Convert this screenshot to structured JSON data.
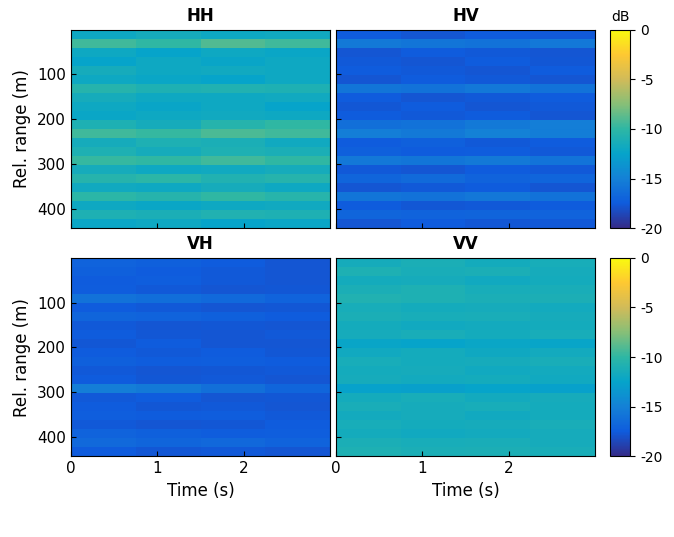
{
  "chart_data": [
    {
      "type": "heatmap",
      "title": "HH",
      "ylabel": "Rel. range (m)",
      "xlim": [
        0,
        3.0
      ],
      "ylim": [
        443,
        0
      ],
      "xticks": [
        0,
        1,
        2
      ],
      "yticks": [
        100,
        200,
        300,
        400
      ],
      "tick_labels": "y",
      "cells": [
        [
          -12,
          -11.5,
          -12,
          -11.8
        ],
        [
          -9.5,
          -10,
          -9,
          -9.5
        ],
        [
          -12,
          -12.5,
          -12,
          -12.2
        ],
        [
          -12.5,
          -12,
          -12.3,
          -12
        ],
        [
          -11.5,
          -12,
          -11.8,
          -12
        ],
        [
          -12,
          -12.2,
          -12.5,
          -12
        ],
        [
          -10.5,
          -11,
          -10.8,
          -11
        ],
        [
          -11.5,
          -12,
          -12,
          -11.8
        ],
        [
          -12,
          -12.3,
          -12,
          -12.5
        ],
        [
          -12.2,
          -12,
          -11.8,
          -12
        ],
        [
          -11,
          -11.5,
          -10.5,
          -10
        ],
        [
          -9.5,
          -9.8,
          -9.2,
          -9.5
        ],
        [
          -11.5,
          -11,
          -11.2,
          -11.8
        ],
        [
          -11,
          -11.5,
          -11,
          -11.2
        ],
        [
          -9.8,
          -10,
          -9.5,
          -10
        ],
        [
          -11.5,
          -12,
          -11.8,
          -11.5
        ],
        [
          -10.5,
          -10.2,
          -10.8,
          -10.5
        ],
        [
          -11.8,
          -12,
          -11.5,
          -12
        ],
        [
          -10.2,
          -10.5,
          -10,
          -10.4
        ],
        [
          -12,
          -12.2,
          -12,
          -11.8
        ],
        [
          -11,
          -11.2,
          -10.8,
          -11
        ],
        [
          -12.2,
          -12,
          -12.5,
          -12.2
        ]
      ]
    },
    {
      "type": "heatmap",
      "title": "HV",
      "xlim": [
        0,
        3.0
      ],
      "ylim": [
        443,
        0
      ],
      "xticks": [
        0,
        1,
        2
      ],
      "yticks": [
        100,
        200,
        300,
        400
      ],
      "tick_labels": false,
      "colorbar": {
        "range": [
          -20,
          0
        ],
        "ticks": [
          0,
          -5,
          -10,
          -15,
          -20
        ],
        "label": "dB"
      },
      "cells": [
        [
          -17.5,
          -17.8,
          -17.5,
          -17.6
        ],
        [
          -15.5,
          -15.8,
          -16,
          -15.6
        ],
        [
          -17.8,
          -17.5,
          -17.6,
          -17.8
        ],
        [
          -17.6,
          -17.8,
          -17.5,
          -17.7
        ],
        [
          -17.5,
          -17.6,
          -17.8,
          -17.5
        ],
        [
          -17.8,
          -17.5,
          -17.6,
          -17.8
        ],
        [
          -15.8,
          -16,
          -15.6,
          -16
        ],
        [
          -17.5,
          -17.8,
          -17.6,
          -17.5
        ],
        [
          -17.7,
          -17.5,
          -17.8,
          -17.6
        ],
        [
          -17.5,
          -17.6,
          -17.5,
          -17.8
        ],
        [
          -16.2,
          -16,
          -15.5,
          -15.2
        ],
        [
          -15.2,
          -15.5,
          -15,
          -15.3
        ],
        [
          -17.5,
          -17.2,
          -17.6,
          -17.5
        ],
        [
          -17.2,
          -17.5,
          -17.4,
          -17.6
        ],
        [
          -15.6,
          -15.8,
          -15.5,
          -15.9
        ],
        [
          -17.6,
          -17.8,
          -17.5,
          -17.6
        ],
        [
          -16.8,
          -16.5,
          -17,
          -16.8
        ],
        [
          -17.8,
          -17.6,
          -17.5,
          -17.8
        ],
        [
          -15.8,
          -16,
          -15.7,
          -16
        ],
        [
          -17.5,
          -17.7,
          -17.6,
          -17.5
        ],
        [
          -16.8,
          -17,
          -16.9,
          -17
        ],
        [
          -17.8,
          -17.5,
          -17.7,
          -17.6
        ]
      ]
    },
    {
      "type": "heatmap",
      "title": "VH",
      "xlabel": "Time (s)",
      "ylabel": "Rel. range (m)",
      "xlim": [
        0,
        3.0
      ],
      "ylim": [
        443,
        0
      ],
      "xticks": [
        0,
        1,
        2
      ],
      "yticks": [
        100,
        200,
        300,
        400
      ],
      "tick_labels": true,
      "cells": [
        [
          -17,
          -17.2,
          -17.5,
          -17.8
        ],
        [
          -17.2,
          -17.5,
          -17.6,
          -17.8
        ],
        [
          -17.5,
          -17.3,
          -17.6,
          -17.8
        ],
        [
          -17.4,
          -17.6,
          -17.8,
          -17.7
        ],
        [
          -16,
          -16.3,
          -16.6,
          -17
        ],
        [
          -17.5,
          -17.6,
          -17.8,
          -17.7
        ],
        [
          -16.8,
          -17,
          -17.2,
          -17.5
        ],
        [
          -17.6,
          -17.8,
          -17.7,
          -17.8
        ],
        [
          -17.5,
          -17.7,
          -17.8,
          -17.6
        ],
        [
          -17.7,
          -17.5,
          -17.8,
          -17.8
        ],
        [
          -17.5,
          -17.6,
          -17.5,
          -17.7
        ],
        [
          -17.2,
          -17.4,
          -17.3,
          -17.5
        ],
        [
          -17.6,
          -17.8,
          -17.7,
          -17.6
        ],
        [
          -17.5,
          -17.7,
          -17.6,
          -17.8
        ],
        [
          -15.2,
          -15.5,
          -16.2,
          -16.8
        ],
        [
          -17.6,
          -17.5,
          -17.8,
          -17.7
        ],
        [
          -17.5,
          -17.7,
          -17.6,
          -17.8
        ],
        [
          -17.3,
          -17.5,
          -17.4,
          -17.6
        ],
        [
          -17.6,
          -17.8,
          -17.7,
          -17.5
        ],
        [
          -17,
          -17.2,
          -17.4,
          -17.3
        ],
        [
          -16.6,
          -16.8,
          -16.7,
          -17
        ],
        [
          -17.5,
          -17.7,
          -17.6,
          -17.8
        ]
      ]
    },
    {
      "type": "heatmap",
      "title": "VV",
      "xlabel": "Time (s)",
      "xlim": [
        0,
        3.0
      ],
      "ylim": [
        443,
        0
      ],
      "xticks": [
        0,
        1,
        2
      ],
      "yticks": [
        100,
        200,
        300,
        400
      ],
      "tick_labels": "x",
      "colorbar": {
        "range": [
          -20,
          0
        ],
        "ticks": [
          0,
          -5,
          -10,
          -15,
          -20
        ]
      },
      "cells": [
        [
          -11.5,
          -11.2,
          -11.6,
          -11.4
        ],
        [
          -11,
          -11.3,
          -11.2,
          -11.5
        ],
        [
          -11.6,
          -11.5,
          -11.8,
          -11.6
        ],
        [
          -11.2,
          -11,
          -11.4,
          -11.3
        ],
        [
          -10.8,
          -11,
          -11.2,
          -11.1
        ],
        [
          -11.4,
          -11.6,
          -11.5,
          -11.7
        ],
        [
          -11.2,
          -11.4,
          -11.3,
          -11.5
        ],
        [
          -11.6,
          -11.8,
          -11.7,
          -11.6
        ],
        [
          -11.5,
          -11.3,
          -11.6,
          -11.4
        ],
        [
          -12.3,
          -12.5,
          -12.2,
          -12.4
        ],
        [
          -11.8,
          -11.6,
          -11.9,
          -11.7
        ],
        [
          -11.4,
          -11.6,
          -11.5,
          -11.3
        ],
        [
          -11.6,
          -11.5,
          -11.8,
          -11.7
        ],
        [
          -11.5,
          -11.7,
          -11.6,
          -11.8
        ],
        [
          -12.6,
          -12.8,
          -12.5,
          -12.7
        ],
        [
          -11.6,
          -11.4,
          -11.7,
          -11.5
        ],
        [
          -11.3,
          -11.5,
          -11.4,
          -11.6
        ],
        [
          -11.7,
          -11.5,
          -11.8,
          -11.6
        ],
        [
          -11.4,
          -11.6,
          -11.5,
          -11.3
        ],
        [
          -11.6,
          -11.8,
          -11.7,
          -11.5
        ],
        [
          -11.2,
          -11.4,
          -11.3,
          -11.5
        ],
        [
          -11,
          -11.2,
          -11.1,
          -11.3
        ]
      ]
    }
  ]
}
